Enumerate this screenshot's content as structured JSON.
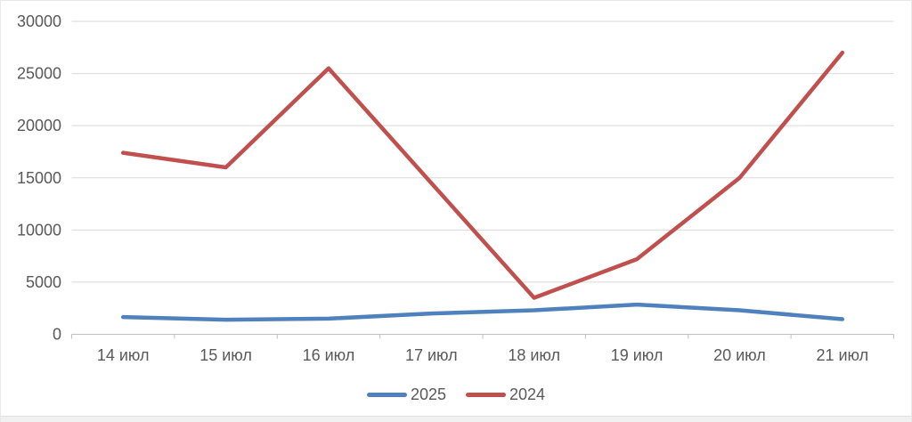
{
  "chart_data": {
    "type": "line",
    "categories": [
      "14 июл",
      "15 июл",
      "16 июл",
      "17 июл",
      "18 июл",
      "19 июл",
      "20 июл",
      "21 июл"
    ],
    "series": [
      {
        "name": "2025",
        "color": "#4F81BD",
        "values": [
          1650,
          1400,
          1500,
          2000,
          2300,
          2850,
          2300,
          1450
        ]
      },
      {
        "name": "2024",
        "color": "#C0504D",
        "values": [
          17400,
          16000,
          25500,
          14500,
          3500,
          7200,
          15000,
          27000
        ]
      }
    ],
    "title": "",
    "xlabel": "",
    "ylabel": "",
    "ylim": [
      0,
      30000
    ],
    "y_tick_step": 5000,
    "y_tick_labels": [
      "0",
      "5000",
      "10000",
      "15000",
      "20000",
      "25000",
      "30000"
    ],
    "grid": true,
    "legend_position": "bottom",
    "legend_labels": [
      "2025",
      "2024"
    ],
    "text_color": "#595959",
    "gridline_color": "#D9D9D9",
    "axis_color": "#BFBFBF"
  }
}
